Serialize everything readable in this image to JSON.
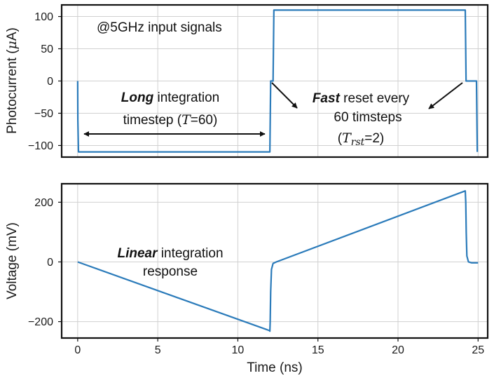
{
  "chart_data": [
    {
      "type": "line",
      "id": "photocurrent",
      "title": "",
      "xlabel": "",
      "ylabel": "Photocurrent (μA)",
      "ylabel_prefix": "Photocurrent (",
      "ylabel_mu": "μ",
      "ylabel_suffix": "A)",
      "xlim": [
        -1,
        25.6
      ],
      "ylim": [
        -118,
        118
      ],
      "yticks": [
        -100,
        -50,
        0,
        50,
        100
      ],
      "yticklabels": [
        "−100",
        "−50",
        "0",
        "50",
        "100"
      ],
      "grid": true,
      "color": "#2b7bba",
      "series": [
        {
          "x": [
            0,
            0.01,
            0.05,
            12.0,
            12.05,
            12.2,
            12.25,
            24.2,
            24.25,
            24.9,
            24.95
          ],
          "y": [
            0,
            -60,
            -110,
            -110,
            0,
            0,
            110,
            110,
            0,
            0,
            -110
          ]
        }
      ],
      "annotations": {
        "signal": "@5GHz input signals",
        "long_bold": "Long",
        "long_rest": " integration",
        "timestep_prefix": "timestep (",
        "timestep_T": "T",
        "timestep_suffix": "=60)",
        "fast_bold": "Fast",
        "fast_rest": " reset every",
        "timesteps": "60 timsteps",
        "trst_open": "(",
        "trst_T": "T",
        "trst_sub": "rst",
        "trst_suffix": "=2)"
      }
    },
    {
      "type": "line",
      "id": "voltage",
      "title": "",
      "xlabel": "Time (ns)",
      "ylabel": "Voltage (mV)",
      "xlim": [
        -1,
        25.6
      ],
      "ylim": [
        -255,
        262
      ],
      "xticks": [
        0,
        5,
        10,
        15,
        20,
        25
      ],
      "xticklabels": [
        "0",
        "5",
        "10",
        "15",
        "20",
        "25"
      ],
      "yticks": [
        -200,
        0,
        200
      ],
      "yticklabels": [
        "−200",
        "0",
        "200"
      ],
      "grid": true,
      "color": "#2b7bba",
      "series": [
        {
          "x": [
            0,
            11.97,
            12.0,
            12.02,
            12.05,
            12.1,
            12.2,
            12.4,
            24.2,
            24.23,
            24.26,
            24.3,
            24.4,
            24.6,
            25.0
          ],
          "y": [
            0,
            -230,
            -232,
            -200,
            -100,
            -25,
            -5,
            0,
            238,
            200,
            100,
            20,
            0,
            -3,
            -3
          ]
        }
      ],
      "annotations": {
        "linear_bold": "Linear",
        "linear_rest": " integration",
        "response": "response"
      }
    }
  ]
}
